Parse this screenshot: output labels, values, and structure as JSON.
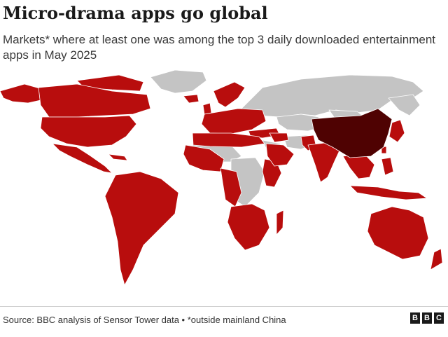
{
  "header": {
    "title": "Micro-drama apps go global",
    "subtitle": "Markets* where at least one was among the top 3 daily downloaded entertainment apps in May 2025"
  },
  "footer": {
    "source": "Source: BBC analysis of Sensor Tower data • *outside mainland China",
    "logo": [
      "B",
      "B",
      "C"
    ]
  },
  "map": {
    "colors": {
      "highlighted_market": "#b80d0d",
      "china": "#4f0202",
      "other": "#c4c4c4",
      "background": "#ffffff",
      "borders": "#ffffff"
    }
  }
}
